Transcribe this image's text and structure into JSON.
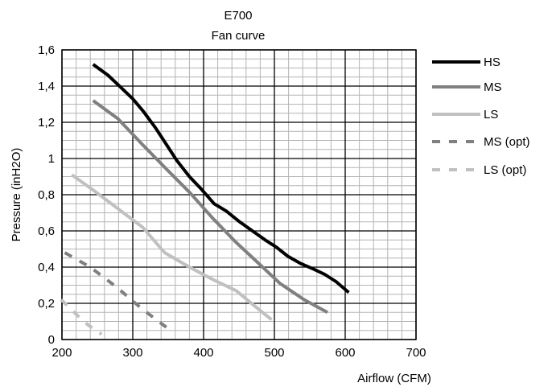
{
  "chart_data": {
    "type": "line",
    "title": "E700",
    "subtitle": "Fan curve",
    "xlabel": "Airflow  (CFM)",
    "ylabel": "Pressure (inH2O)",
    "xlim": [
      200,
      700
    ],
    "ylim": [
      0,
      1.6
    ],
    "x_ticks": [
      "200",
      "300",
      "400",
      "500",
      "600",
      "700"
    ],
    "y_ticks": [
      "0",
      "0,2",
      "0,4",
      "0,6",
      "0,8",
      "1",
      "1,2",
      "1,4",
      "1,6"
    ],
    "grid": true,
    "legend_position": "right",
    "series": [
      {
        "name": "HS",
        "color": "#000000",
        "dashed": false,
        "width": 4,
        "x": [
          244,
          265,
          284,
          300,
          315,
          332,
          347,
          362,
          380,
          397,
          415,
          432,
          451,
          469,
          487,
          503,
          519,
          537,
          555,
          571,
          587,
          605
        ],
        "y": [
          1.52,
          1.46,
          1.39,
          1.33,
          1.26,
          1.17,
          1.08,
          0.99,
          0.9,
          0.83,
          0.75,
          0.71,
          0.65,
          0.6,
          0.55,
          0.51,
          0.46,
          0.42,
          0.39,
          0.36,
          0.32,
          0.26
        ]
      },
      {
        "name": "MS",
        "color": "#808080",
        "dashed": false,
        "width": 4,
        "x": [
          244,
          279,
          313,
          348,
          381,
          413,
          445,
          478,
          508,
          542,
          575
        ],
        "y": [
          1.32,
          1.22,
          1.08,
          0.94,
          0.81,
          0.67,
          0.54,
          0.42,
          0.31,
          0.22,
          0.15
        ]
      },
      {
        "name": "LS",
        "color": "#c0c0c0",
        "dashed": false,
        "width": 4,
        "x": [
          214,
          246,
          280,
          314,
          345,
          380,
          414,
          446,
          480,
          496
        ],
        "y": [
          0.91,
          0.82,
          0.72,
          0.62,
          0.48,
          0.4,
          0.33,
          0.27,
          0.16,
          0.11
        ]
      },
      {
        "name": "MS (opt)",
        "color": "#808080",
        "dashed": true,
        "width": 4,
        "x": [
          204,
          240,
          277,
          313,
          350
        ],
        "y": [
          0.48,
          0.4,
          0.29,
          0.17,
          0.06
        ]
      },
      {
        "name": "LS (opt)",
        "color": "#c0c0c0",
        "dashed": true,
        "width": 4,
        "x": [
          199,
          220,
          237,
          256
        ],
        "y": [
          0.22,
          0.14,
          0.08,
          0.03
        ]
      }
    ]
  }
}
